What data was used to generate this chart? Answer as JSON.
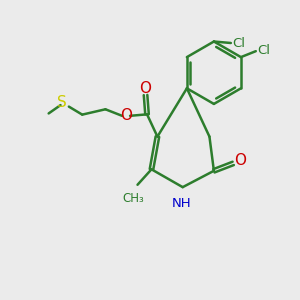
{
  "bg_color": "#ebebeb",
  "bond_color": "#2d7d2d",
  "bond_width": 1.8,
  "S_color": "#cccc00",
  "O_color": "#cc0000",
  "N_color": "#0000cc",
  "Cl_color": "#2d7d2d",
  "figsize": [
    3.0,
    3.0
  ],
  "dpi": 100,
  "xlim": [
    0,
    10
  ],
  "ylim": [
    0,
    10
  ]
}
